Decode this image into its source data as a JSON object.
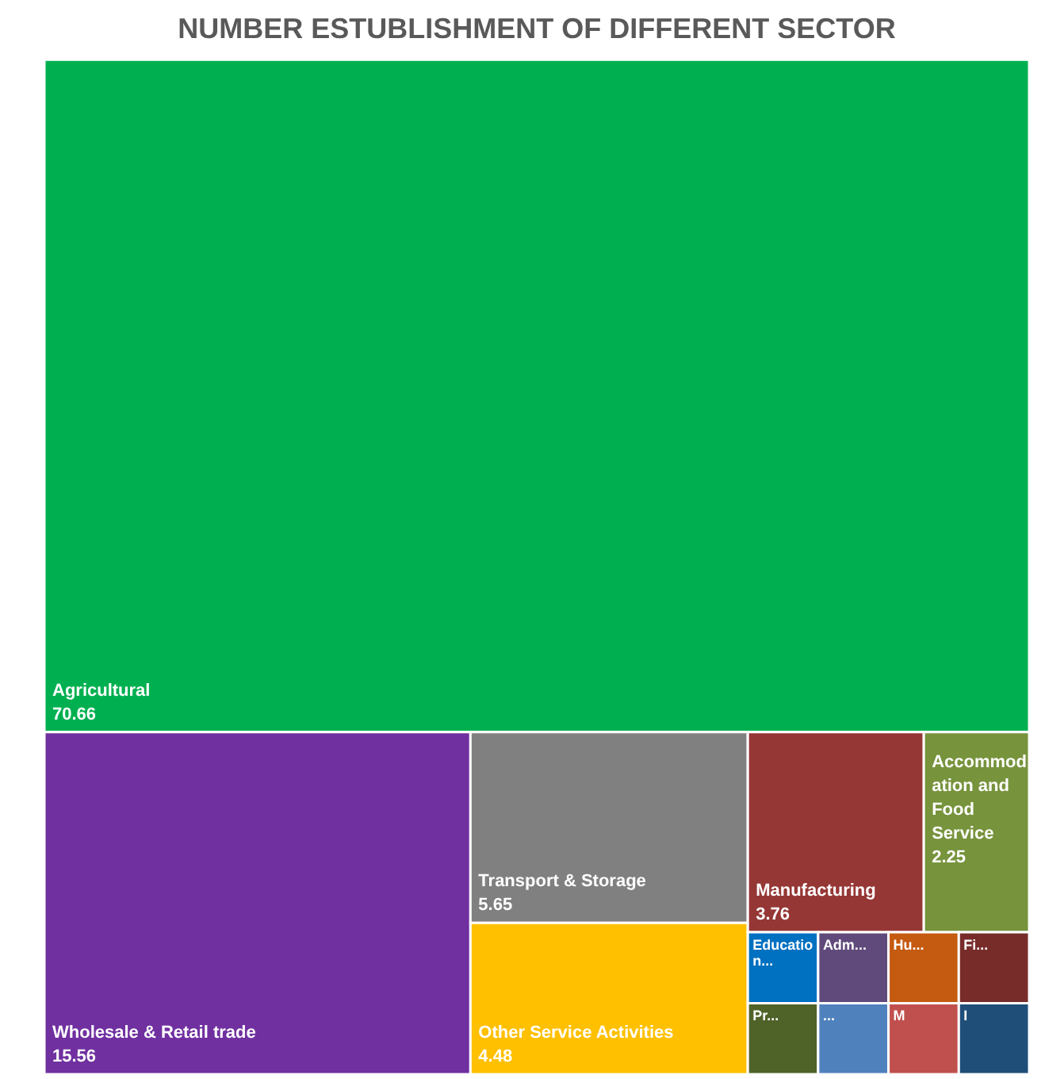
{
  "chart_data": {
    "type": "other",
    "title": "NUMBER ESTUBLISHMENT OF DIFFERENT SECTOR",
    "categories": [
      "Agricultural",
      "Wholesale & Retail trade",
      "Transport & Storage",
      "Other Service Activities",
      "Manufacturing",
      "Accommodation and Food Service",
      "Education...",
      "Adm...",
      "Hu...",
      "Fi...",
      "Pr...",
      "...",
      "M",
      "I"
    ],
    "values": [
      70.66,
      15.56,
      5.65,
      4.48,
      3.76,
      2.25,
      null,
      null,
      null,
      null,
      null,
      null,
      null,
      null
    ],
    "value_labels": [
      "70.66",
      "15.56",
      "5.65",
      "4.48",
      "3.76",
      "2.25",
      null,
      null,
      null,
      null,
      null,
      null,
      null,
      null
    ],
    "colors": [
      "#00b050",
      "#7030a0",
      "#808080",
      "#ffc000",
      "#953735",
      "#77933c",
      "#0070c0",
      "#604a7b",
      "#c55a11",
      "#772c2a",
      "#4f6228",
      "#4f81bd",
      "#c0504d",
      "#1f4e79"
    ]
  }
}
